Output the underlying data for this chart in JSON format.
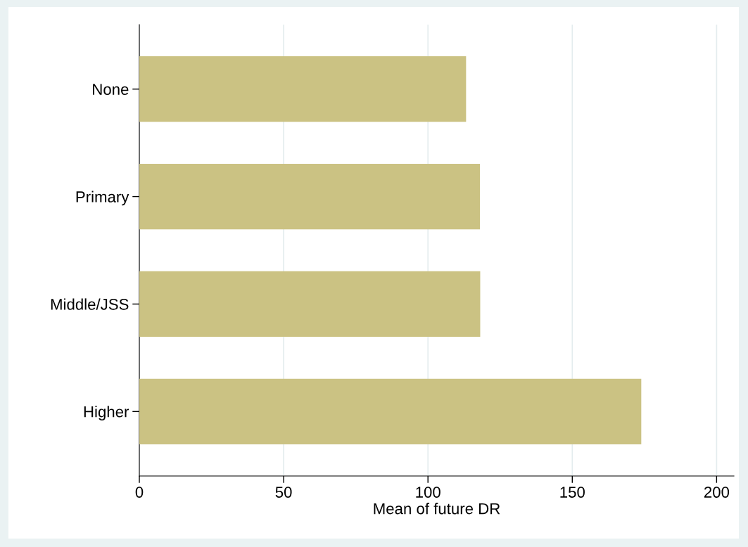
{
  "chart_data": {
    "type": "bar",
    "orientation": "horizontal",
    "categories": [
      "None",
      "Primary",
      "Middle/JSS",
      "Higher"
    ],
    "values": [
      113.2,
      118.0,
      118.1,
      173.9
    ],
    "color": "#cbc283",
    "xlabel": "Mean of future DR",
    "xlim": [
      0,
      206
    ],
    "xticks": [
      0,
      50,
      100,
      150,
      200
    ],
    "grid": "x"
  }
}
